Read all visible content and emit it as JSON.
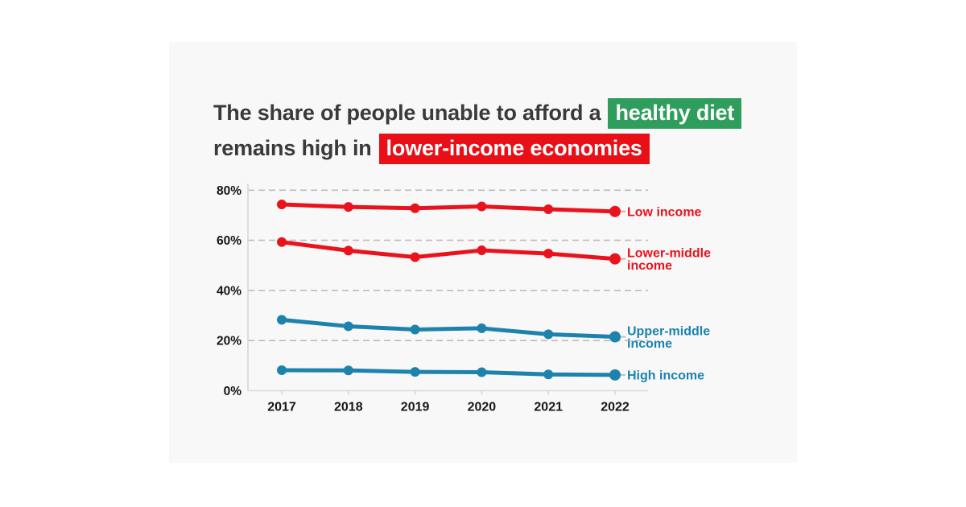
{
  "page": {
    "background": "#ffffff",
    "card_background": "#f8f8f8"
  },
  "title": {
    "line1_plain": "The share of people unable to afford a",
    "line1_highlight": "healthy diet",
    "line2_plain": "remains high in",
    "line2_highlight": "lower-income economies",
    "text_color": "#3a3a3a",
    "highlight_green": "#2f9e5c",
    "highlight_red": "#e90f16"
  },
  "chart_data": {
    "type": "line",
    "title": "The share of people unable to afford a healthy diet remains high in lower-income economies",
    "x": [
      "2017",
      "2018",
      "2019",
      "2020",
      "2021",
      "2022"
    ],
    "xlabel": "",
    "ylabel": "",
    "ylim": [
      0,
      80
    ],
    "yticks": [
      0,
      20,
      40,
      60,
      80
    ],
    "ytick_labels": [
      "0%",
      "20%",
      "40%",
      "60%",
      "80%"
    ],
    "grid": "horizontal-dashed",
    "gridline_color": "#c2b8b8",
    "axis_color": "#d8d8d8",
    "tick_label_color": "#161616",
    "legend_position": "labels-at-line-ends",
    "series": [
      {
        "name": "Low income",
        "label_lines": [
          "Low income"
        ],
        "color": "#e8131c",
        "values": [
          74.3,
          73.3,
          72.8,
          73.5,
          72.4,
          71.5
        ]
      },
      {
        "name": "Lower-middle income",
        "label_lines": [
          "Lower-middle",
          "income"
        ],
        "color": "#e8131c",
        "values": [
          59.3,
          55.9,
          53.3,
          56.0,
          54.7,
          52.6
        ]
      },
      {
        "name": "Upper-middle income",
        "label_lines": [
          "Upper-middle",
          "income"
        ],
        "color": "#1d83ad",
        "values": [
          28.3,
          25.7,
          24.4,
          24.9,
          22.5,
          21.5
        ]
      },
      {
        "name": "High income",
        "label_lines": [
          "High income"
        ],
        "color": "#1d83ad",
        "values": [
          8.2,
          8.1,
          7.5,
          7.4,
          6.5,
          6.3
        ]
      }
    ]
  }
}
